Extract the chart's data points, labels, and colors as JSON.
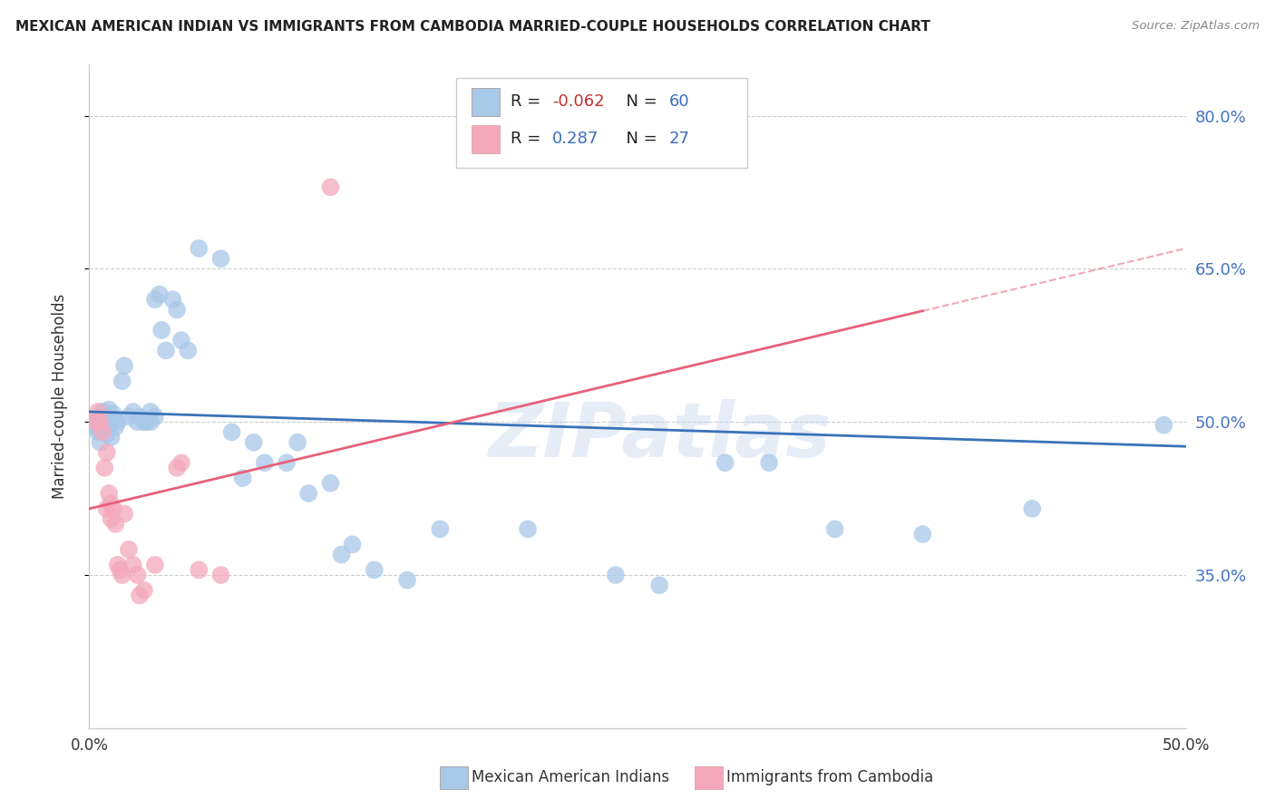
{
  "title": "MEXICAN AMERICAN INDIAN VS IMMIGRANTS FROM CAMBODIA MARRIED-COUPLE HOUSEHOLDS CORRELATION CHART",
  "source": "Source: ZipAtlas.com",
  "ylabel": "Married-couple Households",
  "xlim": [
    0.0,
    0.5
  ],
  "ylim": [
    0.2,
    0.85
  ],
  "yticks": [
    0.35,
    0.5,
    0.65,
    0.8
  ],
  "ytick_labels": [
    "35.0%",
    "50.0%",
    "65.0%",
    "80.0%"
  ],
  "xticks": [
    0.0,
    0.1,
    0.2,
    0.3,
    0.4,
    0.5
  ],
  "xtick_labels": [
    "0.0%",
    "",
    "",
    "",
    "",
    "50.0%"
  ],
  "blue_R": "-0.062",
  "blue_N": "60",
  "pink_R": "0.287",
  "pink_N": "27",
  "blue_color": "#a8c8e8",
  "pink_color": "#f4a8bc",
  "blue_line_color": "#3a72b8",
  "pink_line_color": "#e8607a",
  "blue_scatter": [
    [
      0.002,
      0.5
    ],
    [
      0.003,
      0.495
    ],
    [
      0.004,
      0.49
    ],
    [
      0.005,
      0.505
    ],
    [
      0.005,
      0.48
    ],
    [
      0.006,
      0.5
    ],
    [
      0.006,
      0.51
    ],
    [
      0.007,
      0.495
    ],
    [
      0.008,
      0.488
    ],
    [
      0.008,
      0.505
    ],
    [
      0.009,
      0.498
    ],
    [
      0.009,
      0.512
    ],
    [
      0.01,
      0.502
    ],
    [
      0.01,
      0.485
    ],
    [
      0.011,
      0.508
    ],
    [
      0.012,
      0.495
    ],
    [
      0.013,
      0.5
    ],
    [
      0.015,
      0.54
    ],
    [
      0.016,
      0.555
    ],
    [
      0.018,
      0.505
    ],
    [
      0.02,
      0.51
    ],
    [
      0.022,
      0.5
    ],
    [
      0.023,
      0.505
    ],
    [
      0.025,
      0.5
    ],
    [
      0.026,
      0.5
    ],
    [
      0.028,
      0.5
    ],
    [
      0.028,
      0.51
    ],
    [
      0.03,
      0.505
    ],
    [
      0.03,
      0.62
    ],
    [
      0.032,
      0.625
    ],
    [
      0.033,
      0.59
    ],
    [
      0.035,
      0.57
    ],
    [
      0.038,
      0.62
    ],
    [
      0.04,
      0.61
    ],
    [
      0.042,
      0.58
    ],
    [
      0.045,
      0.57
    ],
    [
      0.05,
      0.67
    ],
    [
      0.06,
      0.66
    ],
    [
      0.065,
      0.49
    ],
    [
      0.07,
      0.445
    ],
    [
      0.075,
      0.48
    ],
    [
      0.08,
      0.46
    ],
    [
      0.09,
      0.46
    ],
    [
      0.095,
      0.48
    ],
    [
      0.1,
      0.43
    ],
    [
      0.11,
      0.44
    ],
    [
      0.115,
      0.37
    ],
    [
      0.12,
      0.38
    ],
    [
      0.13,
      0.355
    ],
    [
      0.145,
      0.345
    ],
    [
      0.16,
      0.395
    ],
    [
      0.2,
      0.395
    ],
    [
      0.24,
      0.35
    ],
    [
      0.26,
      0.34
    ],
    [
      0.29,
      0.46
    ],
    [
      0.31,
      0.46
    ],
    [
      0.34,
      0.395
    ],
    [
      0.38,
      0.39
    ],
    [
      0.43,
      0.415
    ],
    [
      0.49,
      0.497
    ]
  ],
  "pink_scatter": [
    [
      0.003,
      0.5
    ],
    [
      0.004,
      0.51
    ],
    [
      0.005,
      0.5
    ],
    [
      0.006,
      0.49
    ],
    [
      0.007,
      0.455
    ],
    [
      0.008,
      0.47
    ],
    [
      0.008,
      0.415
    ],
    [
      0.009,
      0.43
    ],
    [
      0.01,
      0.42
    ],
    [
      0.01,
      0.405
    ],
    [
      0.011,
      0.415
    ],
    [
      0.012,
      0.4
    ],
    [
      0.013,
      0.36
    ],
    [
      0.014,
      0.355
    ],
    [
      0.015,
      0.35
    ],
    [
      0.016,
      0.41
    ],
    [
      0.018,
      0.375
    ],
    [
      0.02,
      0.36
    ],
    [
      0.022,
      0.35
    ],
    [
      0.023,
      0.33
    ],
    [
      0.025,
      0.335
    ],
    [
      0.03,
      0.36
    ],
    [
      0.04,
      0.455
    ],
    [
      0.042,
      0.46
    ],
    [
      0.05,
      0.355
    ],
    [
      0.06,
      0.35
    ],
    [
      0.11,
      0.73
    ]
  ],
  "watermark": "ZIPatlas",
  "background_color": "#ffffff",
  "grid_color": "#cccccc",
  "blue_line_start_y": 0.51,
  "blue_line_end_y": 0.476,
  "pink_line_x0": 0.0,
  "pink_line_y0": 0.415,
  "pink_line_x1": 0.5,
  "pink_line_y1": 0.67
}
